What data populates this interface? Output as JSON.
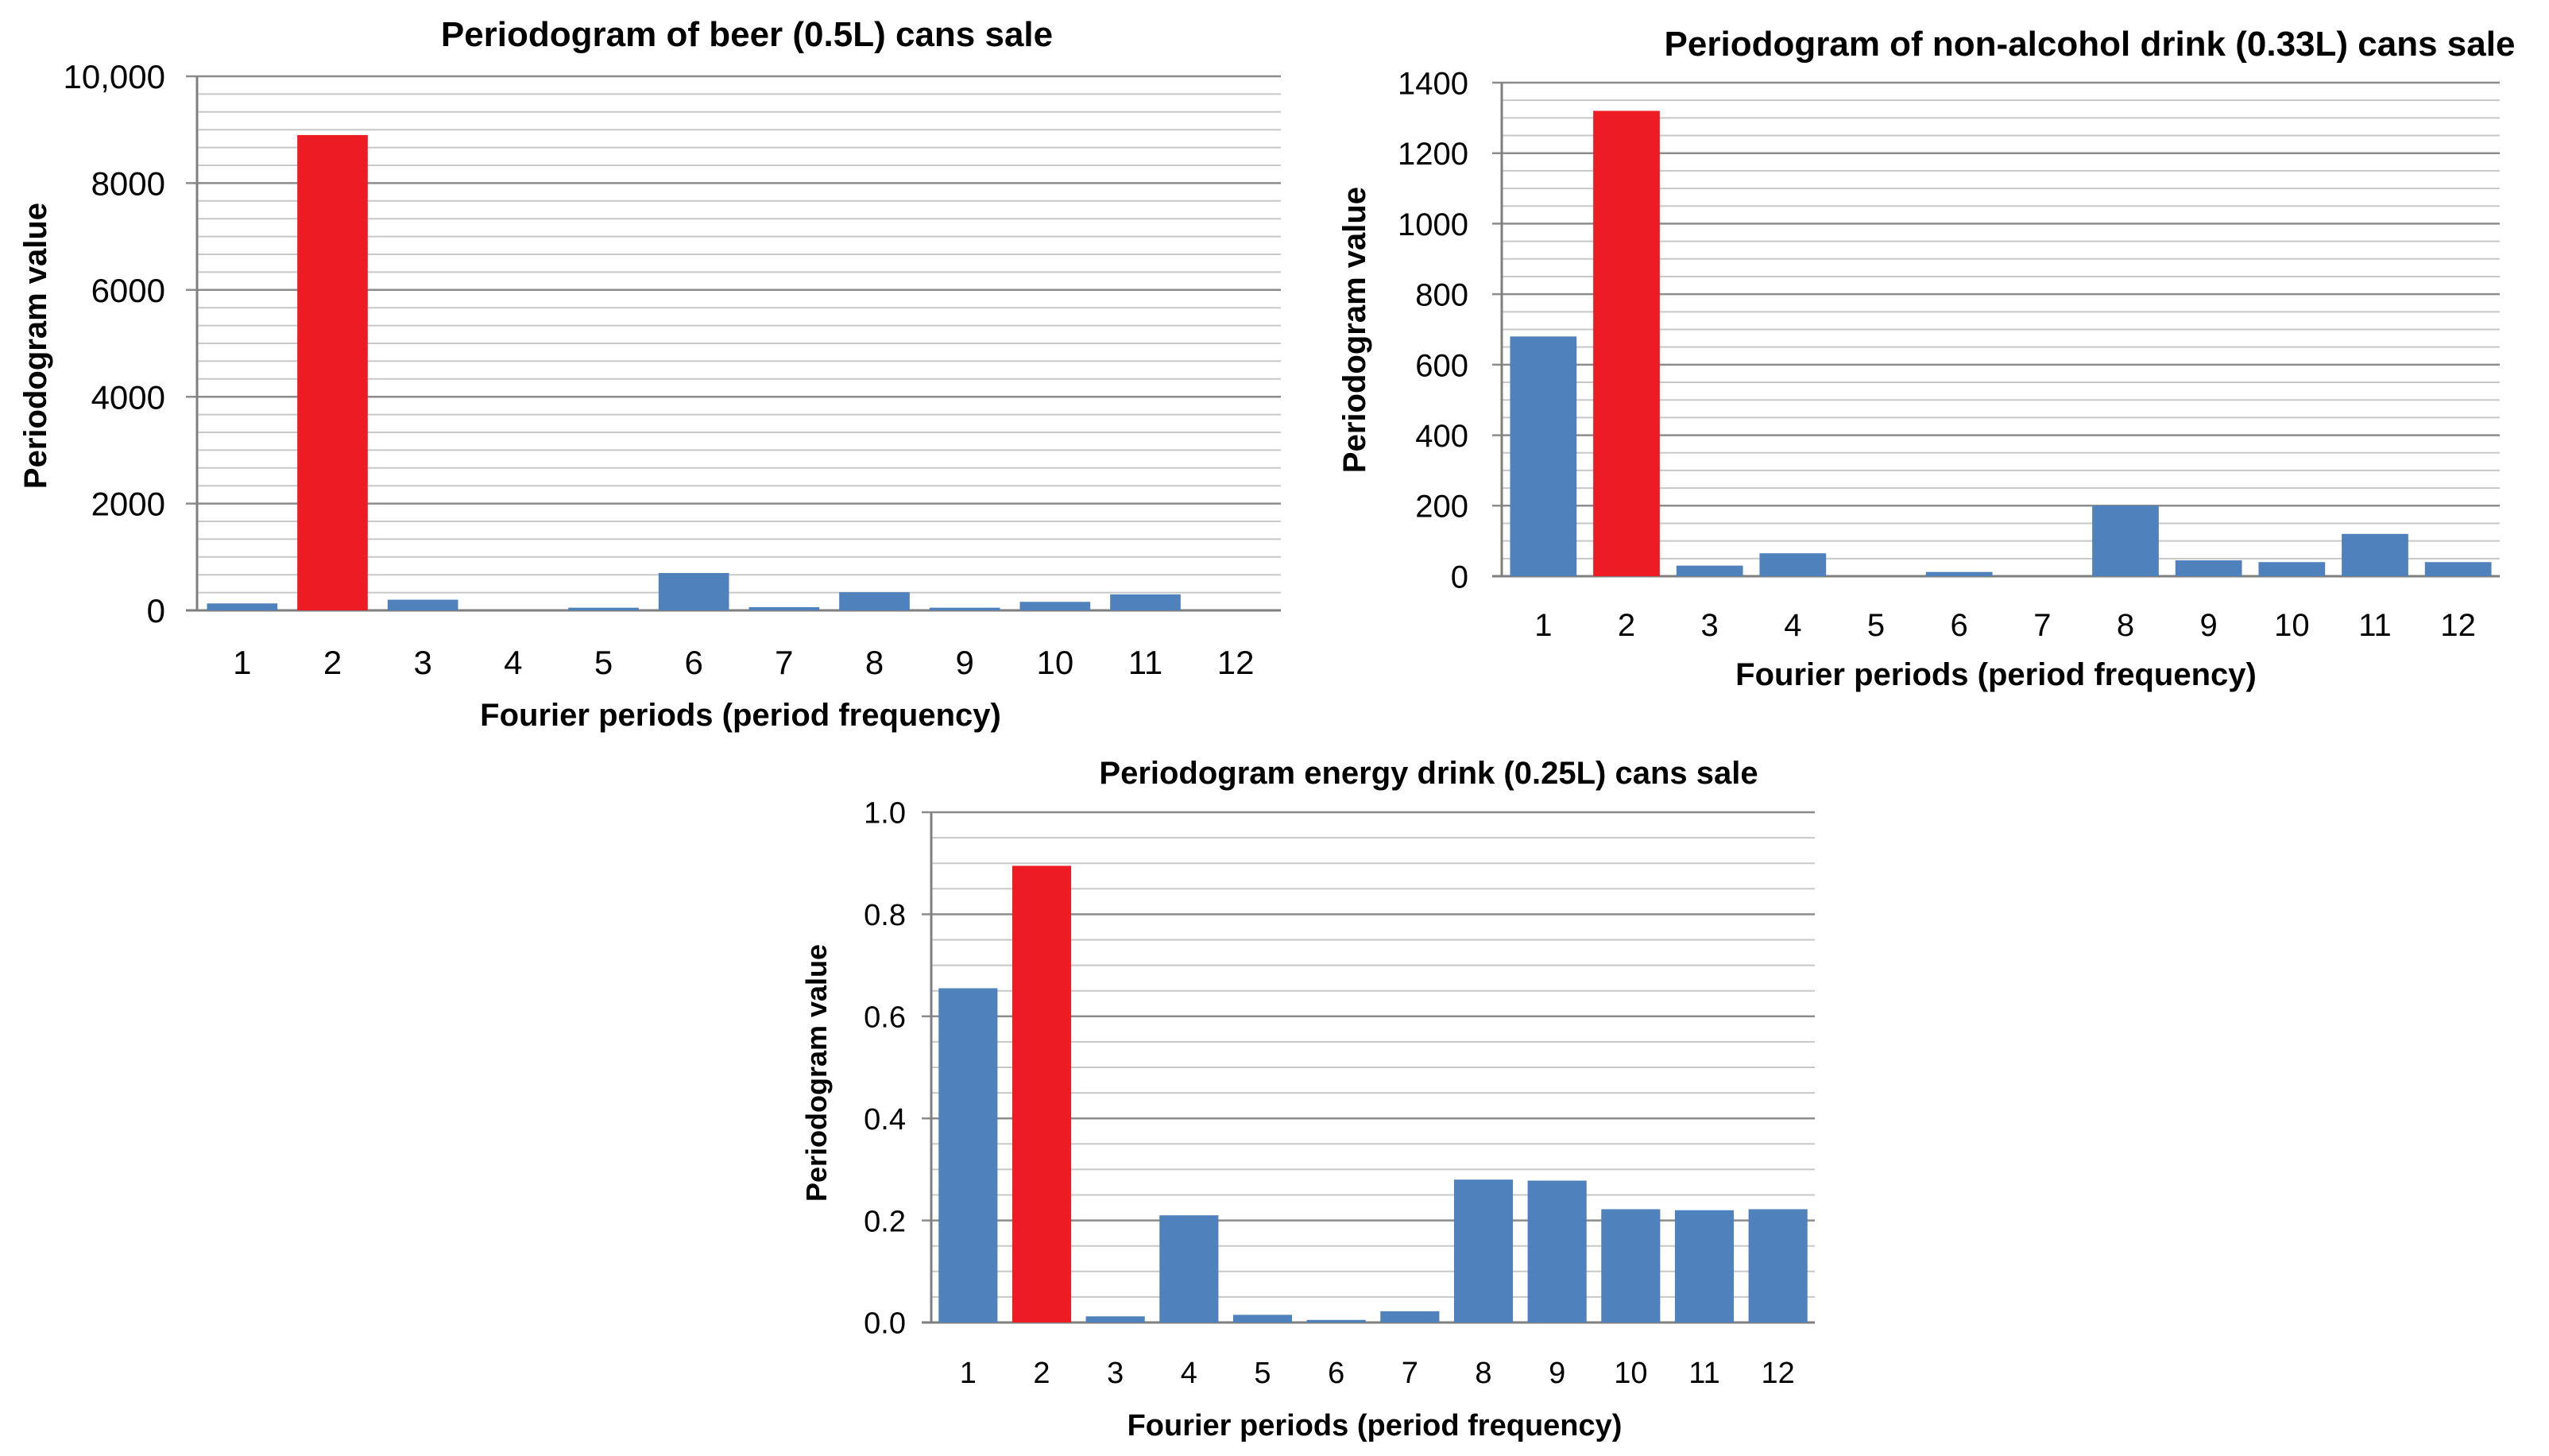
{
  "figure": {
    "colors": {
      "bar": "#4F81BD",
      "highlight": "#ED1C24",
      "highlight_label": "#C0292B",
      "major_grid": "#8C8C8C",
      "minor_grid": "#C8C8C8",
      "axis": "#7F7F7F"
    }
  },
  "chart_data": [
    {
      "id": "beer",
      "type": "bar",
      "title": "Periodogram of beer (0.5L) cans sale",
      "xlabel": "Fourier periods (period frequency)",
      "ylabel": "Periodogram value",
      "categories": [
        "1",
        "2",
        "3",
        "4",
        "5",
        "6",
        "7",
        "8",
        "9",
        "10",
        "11",
        "12"
      ],
      "values": [
        130,
        8900,
        200,
        0,
        50,
        700,
        60,
        340,
        50,
        160,
        300,
        0
      ],
      "highlight_category": "2",
      "ylim": [
        0,
        10000
      ],
      "yticks": [
        0,
        2000,
        4000,
        6000,
        8000,
        10000
      ],
      "ytick_labels": [
        "0",
        "2000",
        "4000",
        "6000",
        "8000",
        "10,000"
      ],
      "grid": "horizontal",
      "legend": "none"
    },
    {
      "id": "nonalcohol",
      "type": "bar",
      "title": "Periodogram of non-alcohol drink (0.33L) cans sale",
      "xlabel": "Fourier periods (period frequency)",
      "ylabel": "Periodogram value",
      "categories": [
        "1",
        "2",
        "3",
        "4",
        "5",
        "6",
        "7",
        "8",
        "9",
        "10",
        "11",
        "12"
      ],
      "values": [
        680,
        1320,
        30,
        65,
        0,
        12,
        0,
        200,
        45,
        40,
        120,
        40
      ],
      "highlight_category": "2",
      "ylim": [
        0,
        1400
      ],
      "yticks": [
        0,
        200,
        400,
        600,
        800,
        1000,
        1200,
        1400
      ],
      "ytick_labels": [
        "0",
        "200",
        "400",
        "600",
        "800",
        "1000",
        "1200",
        "1400"
      ],
      "grid": "horizontal",
      "legend": "none"
    },
    {
      "id": "energy",
      "type": "bar",
      "title": "Periodogram energy drink (0.25L) cans sale",
      "xlabel": "Fourier periods (period frequency)",
      "ylabel": "Periodogram value",
      "categories": [
        "1",
        "2",
        "3",
        "4",
        "5",
        "6",
        "7",
        "8",
        "9",
        "10",
        "11",
        "12"
      ],
      "values": [
        0.655,
        0.895,
        0.012,
        0.21,
        0.015,
        0.005,
        0.022,
        0.28,
        0.278,
        0.222,
        0.22,
        0.222
      ],
      "highlight_category": "2",
      "ylim": [
        0,
        1.0
      ],
      "yticks": [
        0,
        0.2,
        0.4,
        0.6,
        0.8,
        1.0
      ],
      "ytick_labels": [
        "0.0",
        "0.2",
        "0.4",
        "0.6",
        "0.8",
        "1.0"
      ],
      "grid": "horizontal",
      "legend": "none"
    }
  ]
}
